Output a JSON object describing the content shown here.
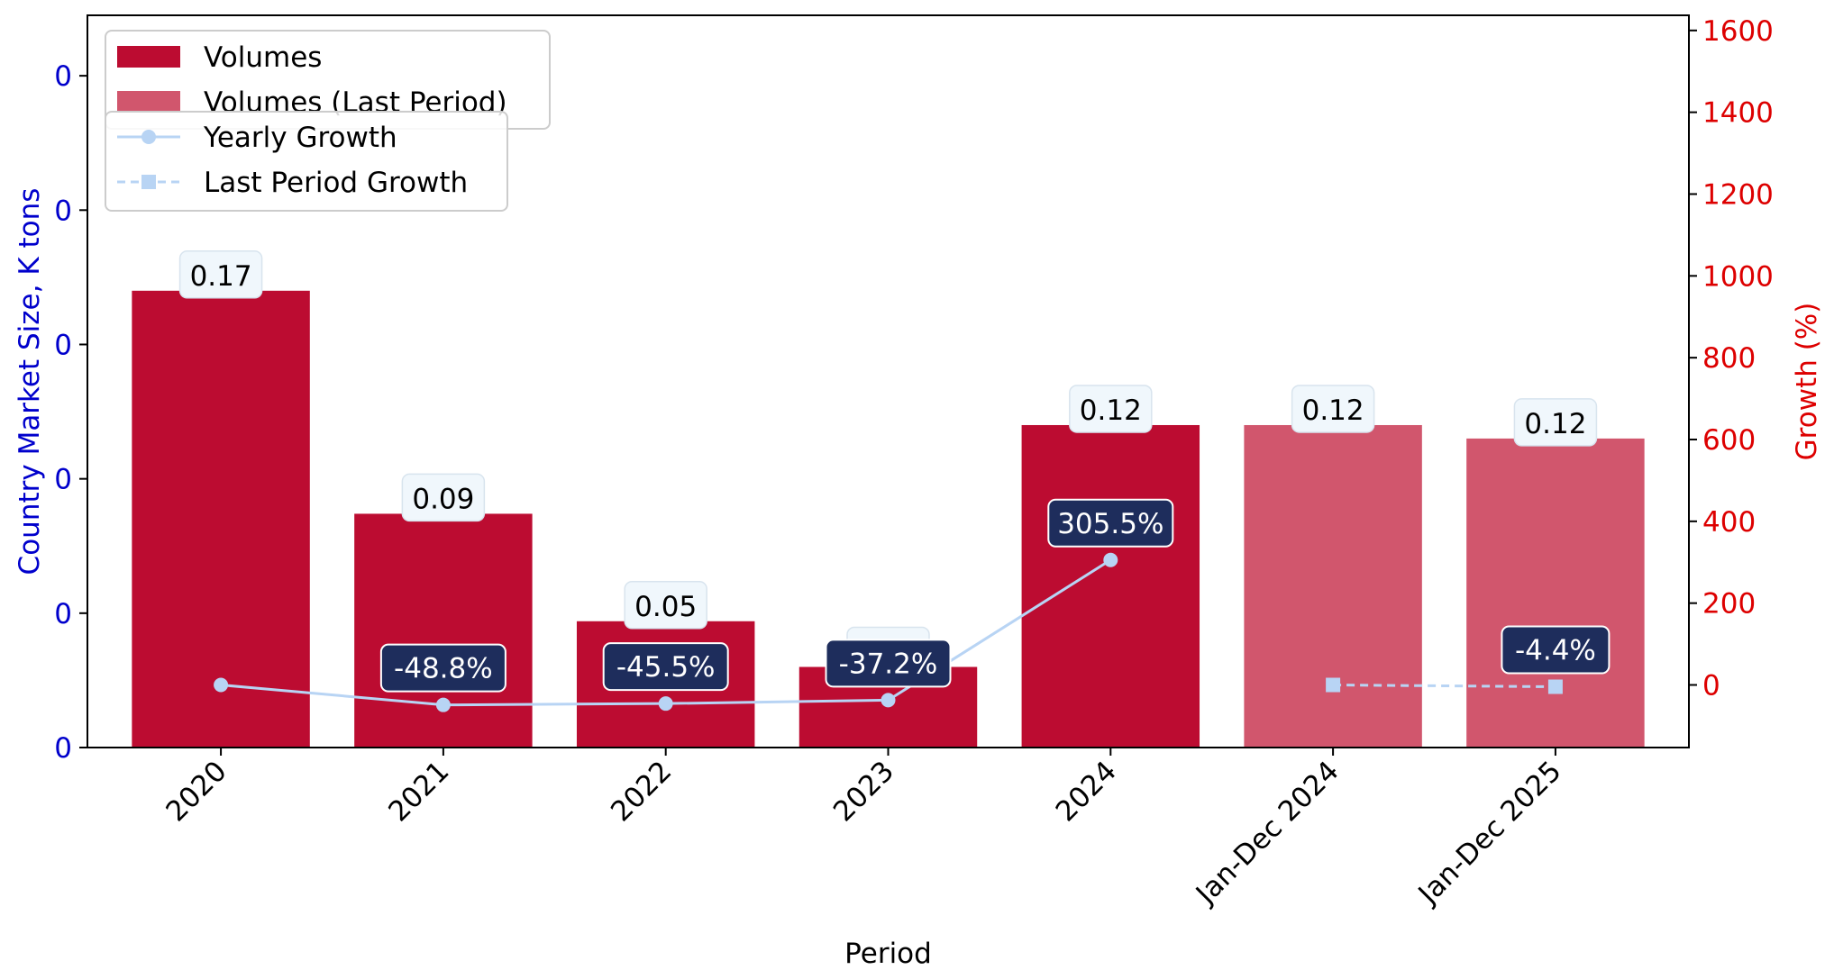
{
  "chart_data": {
    "type": "bar",
    "xlabel": "Period",
    "ylabel_left": "Country Market Size, K tons",
    "ylabel_right": "Growth (%)",
    "categories": [
      "2020",
      "2021",
      "2022",
      "2023",
      "2024",
      "Jan-Dec 2024",
      "Jan-Dec 2025"
    ],
    "bar_series": [
      {
        "name": "Volumes",
        "color": "#bc0c31",
        "indices": [
          0,
          1,
          2,
          3,
          4
        ]
      },
      {
        "name": "Volumes (Last Period)",
        "color": "#d1566d",
        "indices": [
          5,
          6
        ]
      }
    ],
    "values": [
      0.17,
      0.087,
      0.047,
      0.03,
      0.12,
      0.12,
      0.115
    ],
    "value_labels": [
      "0.17",
      "0.09",
      "0.05",
      "0.03",
      "0.12",
      "0.12",
      "0.12"
    ],
    "left_ylim": [
      0,
      0.2725
    ],
    "left_ticks": [
      {
        "value": 0,
        "label": "0"
      },
      {
        "value": 0.05,
        "label": "0"
      },
      {
        "value": 0.1,
        "label": "0"
      },
      {
        "value": 0.15,
        "label": "0"
      },
      {
        "value": 0.2,
        "label": "0"
      },
      {
        "value": 0.25,
        "label": "0"
      }
    ],
    "right_ylim": [
      -153,
      1637
    ],
    "right_ticks": [
      0,
      200,
      400,
      600,
      800,
      1000,
      1200,
      1400,
      1600
    ],
    "line_series": [
      {
        "name": "Yearly Growth",
        "color": "#b8d4f4",
        "style": "solid",
        "marker": "circle",
        "indices": [
          0,
          1,
          2,
          3,
          4
        ],
        "values": [
          0,
          -48.8,
          -45.5,
          -37.2,
          305.5
        ],
        "labels": [
          "",
          "-48.8%",
          "-45.5%",
          "-37.2%",
          "305.5%"
        ]
      },
      {
        "name": "Last Period Growth",
        "color": "#b8d4f4",
        "style": "dashed",
        "marker": "square",
        "indices": [
          5,
          6
        ],
        "values": [
          0,
          -4.4
        ],
        "labels": [
          "",
          "-4.4%"
        ]
      }
    ],
    "left_axis_color": "#0000cc",
    "right_axis_color": "#dd0000",
    "growth_label_bg": "#1e2d5c",
    "value_label_bg": "#f0f7fc",
    "legend_placement": "top-left"
  }
}
